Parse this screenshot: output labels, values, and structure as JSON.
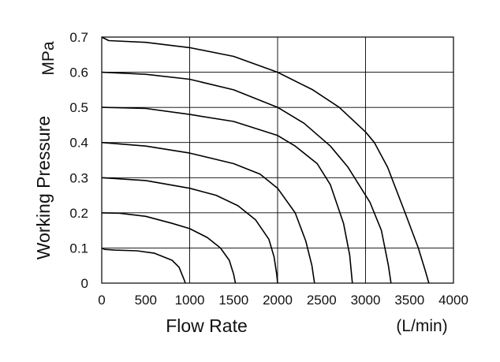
{
  "chart_data": {
    "type": "line",
    "title": "",
    "xlabel": "Flow Rate",
    "xunit": "(L/min)",
    "ylabel": "Working Pressure",
    "yunit": "MPa",
    "xlim": [
      0,
      4000
    ],
    "ylim": [
      0,
      0.7
    ],
    "xticks": [
      0,
      500,
      1000,
      1500,
      2000,
      2500,
      3000,
      3500,
      4000
    ],
    "yticks": [
      0,
      0.1,
      0.2,
      0.3,
      0.4,
      0.5,
      0.6,
      0.7
    ],
    "xtick_labels": [
      "0",
      "500",
      "1000",
      "1500",
      "2000",
      "2500",
      "3000",
      "3500",
      "4000"
    ],
    "ytick_labels": [
      "0",
      "0.1",
      "0.2",
      "0.3",
      "0.4",
      "0.5",
      "0.6",
      "0.7"
    ],
    "grid_x": [
      0,
      1000,
      2000,
      3000,
      4000
    ],
    "grid_y": [
      0,
      0.1,
      0.2,
      0.3,
      0.4,
      0.5,
      0.6,
      0.7
    ],
    "legend": "none",
    "line_color": "#000000",
    "series": [
      {
        "x": [
          0,
          30,
          150,
          400,
          600,
          800,
          880,
          920,
          940,
          950
        ],
        "y": [
          0.1,
          0.096,
          0.094,
          0.092,
          0.085,
          0.065,
          0.045,
          0.02,
          0.008,
          0
        ]
      },
      {
        "x": [
          0,
          200,
          500,
          800,
          1000,
          1200,
          1350,
          1450,
          1500,
          1520
        ],
        "y": [
          0.2,
          0.199,
          0.19,
          0.17,
          0.155,
          0.13,
          0.1,
          0.065,
          0.025,
          0
        ]
      },
      {
        "x": [
          0,
          500,
          1000,
          1300,
          1550,
          1750,
          1900,
          1960,
          1990,
          2000
        ],
        "y": [
          0.3,
          0.292,
          0.27,
          0.25,
          0.22,
          0.18,
          0.125,
          0.075,
          0.025,
          0
        ]
      },
      {
        "x": [
          0,
          500,
          1000,
          1500,
          1800,
          2000,
          2200,
          2320,
          2390,
          2420
        ],
        "y": [
          0.4,
          0.39,
          0.37,
          0.34,
          0.31,
          0.27,
          0.2,
          0.12,
          0.05,
          0
        ]
      },
      {
        "x": [
          0,
          500,
          1000,
          1500,
          2000,
          2200,
          2450,
          2600,
          2750,
          2820,
          2850
        ],
        "y": [
          0.5,
          0.497,
          0.48,
          0.46,
          0.42,
          0.39,
          0.34,
          0.28,
          0.17,
          0.08,
          0
        ]
      },
      {
        "x": [
          0,
          500,
          1000,
          1500,
          2000,
          2300,
          2600,
          2800,
          3050,
          3180,
          3260,
          3290
        ],
        "y": [
          0.6,
          0.594,
          0.58,
          0.55,
          0.5,
          0.455,
          0.39,
          0.33,
          0.23,
          0.15,
          0.05,
          0
        ]
      },
      {
        "x": [
          0,
          80,
          500,
          1000,
          1500,
          2000,
          2400,
          2700,
          3000,
          3100,
          3250,
          3450,
          3600,
          3680,
          3720
        ],
        "y": [
          0.7,
          0.69,
          0.685,
          0.67,
          0.645,
          0.6,
          0.55,
          0.5,
          0.43,
          0.4,
          0.33,
          0.2,
          0.1,
          0.035,
          0
        ]
      }
    ]
  }
}
